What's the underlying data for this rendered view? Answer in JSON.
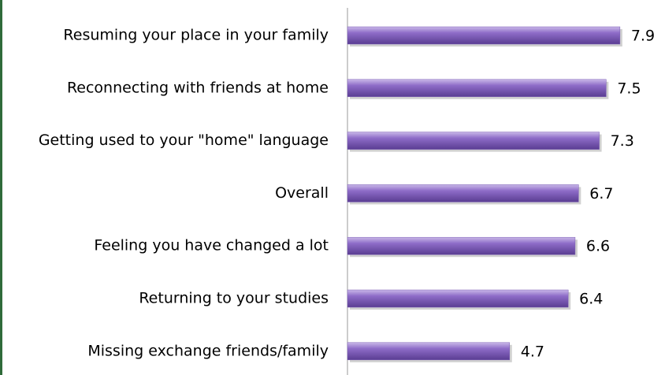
{
  "chart_data": {
    "type": "bar",
    "orientation": "horizontal",
    "categories": [
      "Resuming your place in your family",
      "Reconnecting with friends at home",
      "Getting used to your \"home\" language",
      "Overall",
      "Feeling you have changed a lot",
      "Returning to your studies",
      "Missing exchange friends/family"
    ],
    "values": [
      7.9,
      7.5,
      7.3,
      6.7,
      6.6,
      6.4,
      4.7
    ],
    "color": "#7b5cb5",
    "xlim": [
      0,
      9
    ]
  }
}
